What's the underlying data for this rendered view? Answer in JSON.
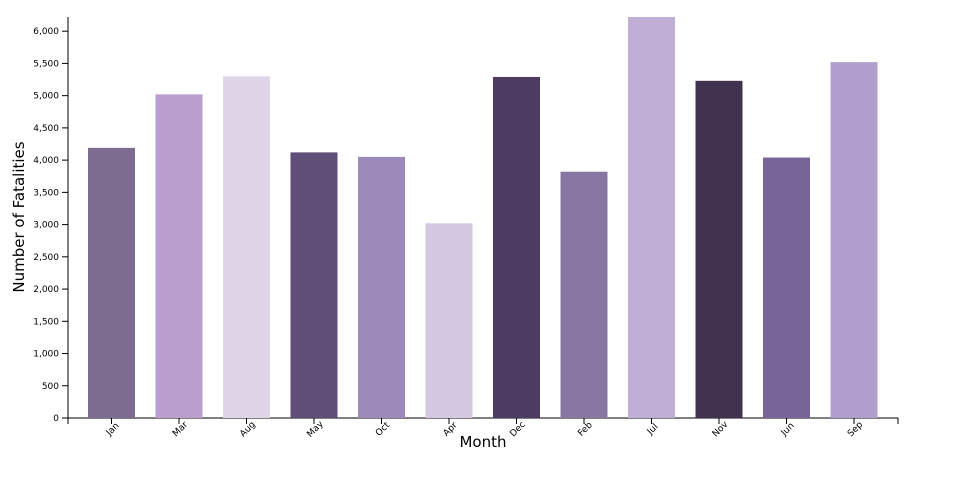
{
  "chart_data": {
    "type": "bar",
    "x_label": "Month",
    "y_label": "Number of Fatalities",
    "categories": [
      "Jan",
      "Mar",
      "Aug",
      "May",
      "Oct",
      "Apr",
      "Dec",
      "Feb",
      "Jul",
      "Nov",
      "Jun",
      "Sep"
    ],
    "values": [
      4190,
      5020,
      5300,
      4120,
      4050,
      3020,
      5290,
      3820,
      6220,
      5230,
      4040,
      5520
    ],
    "colors": [
      "#7d6b90",
      "#b99fcd",
      "#e0d4e8",
      "#5f4e77",
      "#9b8aba",
      "#d5c8e2",
      "#4e3b62",
      "#8877a3",
      "#c0aed5",
      "#41334f",
      "#796499",
      "#b09fcc"
    ],
    "ylim": [
      0,
      6220
    ],
    "yticks": [
      0,
      500,
      {
        "value": 1000,
        "label": "1,000"
      },
      {
        "value": 1500,
        "label": "1,500"
      },
      {
        "value": 2000,
        "label": "2,000"
      },
      {
        "value": 2500,
        "label": "2,500"
      },
      {
        "value": 3000,
        "label": "3,000"
      },
      {
        "value": 3500,
        "label": "3,500"
      },
      {
        "value": 4000,
        "label": "4,000"
      },
      {
        "value": 4500,
        "label": "4,500"
      },
      {
        "value": 5000,
        "label": "5,000"
      },
      {
        "value": 5500,
        "label": "5,500"
      },
      {
        "value": 6000,
        "label": "6,000"
      }
    ]
  }
}
